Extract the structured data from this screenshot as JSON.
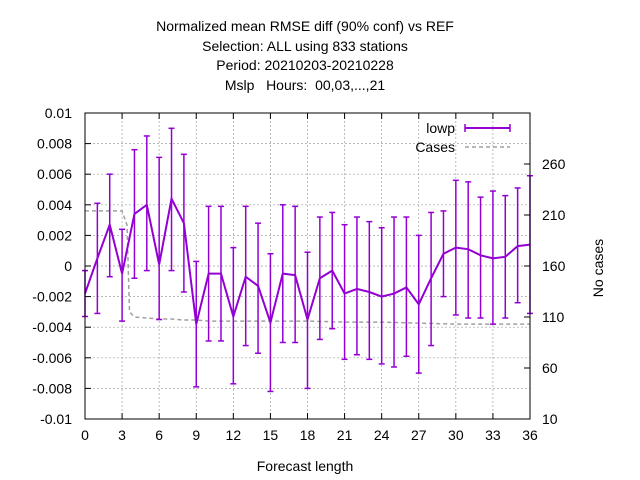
{
  "title_lines": [
    "Normalized mean RMSE diff (90% conf) vs REF",
    "Selection: ALL using   833 stations",
    "Period: 20210203-20210228",
    "Mslp   Hours:  00,03,...,21"
  ],
  "colors": {
    "lowp": "#9400d3",
    "cases": "#a0a0a0",
    "grid": "#a0a0a0"
  },
  "chart_data": {
    "type": "line",
    "title": "Normalized mean RMSE diff (90% conf) vs REF",
    "subtitle": [
      "Selection: ALL using   833 stations",
      "Period: 20210203-20210228",
      "Mslp   Hours:  00,03,...,21"
    ],
    "xlabel": "Forecast length",
    "ylabel": "",
    "y2label": "No cases",
    "xlim": [
      0,
      36
    ],
    "ylim": [
      -0.01,
      0.01
    ],
    "y2lim": [
      10,
      310
    ],
    "grid": true,
    "legend_position": "top-right",
    "x_ticks": [
      "0",
      "3",
      "6",
      "9",
      "12",
      "15",
      "18",
      "21",
      "24",
      "27",
      "30",
      "33",
      "36"
    ],
    "y_ticks": [
      "-0.01",
      "-0.008",
      "-0.006",
      "-0.004",
      "-0.002",
      "0",
      "0.002",
      "0.004",
      "0.006",
      "0.008",
      "0.01"
    ],
    "y2_ticks": [
      "10",
      "60",
      "110",
      "160",
      "210",
      "260"
    ],
    "series": [
      {
        "name": "lowp",
        "axis": "left",
        "style": "line-errorbars",
        "x": [
          0,
          1,
          2,
          3,
          4,
          5,
          6,
          7,
          8,
          9,
          10,
          11,
          12,
          13,
          14,
          15,
          16,
          17,
          18,
          19,
          20,
          21,
          22,
          23,
          24,
          25,
          26,
          27,
          28,
          29,
          30,
          31,
          32,
          33,
          34,
          35,
          36
        ],
        "y": [
          -0.0018,
          0.0005,
          0.0027,
          -0.0005,
          0.0034,
          0.004,
          0.0001,
          0.0044,
          0.0028,
          -0.0038,
          -0.0005,
          -0.0005,
          -0.0033,
          -0.0007,
          -0.0013,
          -0.0037,
          -0.0005,
          -0.0006,
          -0.0035,
          -0.0008,
          -0.0003,
          -0.0018,
          -0.0015,
          -0.0017,
          -0.002,
          -0.0018,
          -0.0014,
          -0.0025,
          -0.0008,
          0.0008,
          0.0012,
          0.0011,
          0.0007,
          0.0005,
          0.0006,
          0.0013,
          0.0014
        ],
        "y_low": [
          -0.0033,
          -0.0031,
          -0.0007,
          -0.0036,
          -0.0008,
          -0.0003,
          -0.0035,
          -0.0003,
          -0.0017,
          -0.0079,
          -0.0049,
          -0.0049,
          -0.0077,
          -0.0052,
          -0.0057,
          -0.0082,
          -0.005,
          -0.005,
          -0.008,
          -0.0048,
          -0.0041,
          -0.0061,
          -0.0058,
          -0.0061,
          -0.0064,
          -0.0066,
          -0.0059,
          -0.007,
          -0.0052,
          -0.002,
          -0.0032,
          -0.0034,
          -0.0034,
          -0.0038,
          -0.0034,
          -0.0024,
          -0.0031
        ],
        "y_high": [
          -0.0003,
          0.0041,
          0.006,
          0.0024,
          0.0076,
          0.0085,
          0.0071,
          0.009,
          0.0073,
          0.0003,
          0.0039,
          0.0039,
          0.0012,
          0.0039,
          0.0028,
          0.0008,
          0.004,
          0.0039,
          0.0009,
          0.0032,
          0.0035,
          0.0027,
          0.0032,
          0.0029,
          0.0025,
          0.0032,
          0.0032,
          0.002,
          0.0035,
          0.0036,
          0.0056,
          0.0055,
          0.0045,
          0.0049,
          0.0046,
          0.0051,
          0.0059
        ]
      },
      {
        "name": "Cases",
        "axis": "right",
        "style": "dashed",
        "x": [
          0,
          1,
          2,
          3,
          3.4,
          3.6,
          4,
          5,
          6,
          7,
          8,
          9,
          10,
          12,
          15,
          18,
          21,
          24,
          27,
          30,
          33,
          36
        ],
        "y": [
          214,
          214,
          214,
          214,
          200,
          115,
          110,
          109,
          108,
          108,
          107,
          107,
          106,
          106,
          106,
          106,
          105,
          105,
          104,
          103,
          103,
          103
        ]
      }
    ]
  }
}
